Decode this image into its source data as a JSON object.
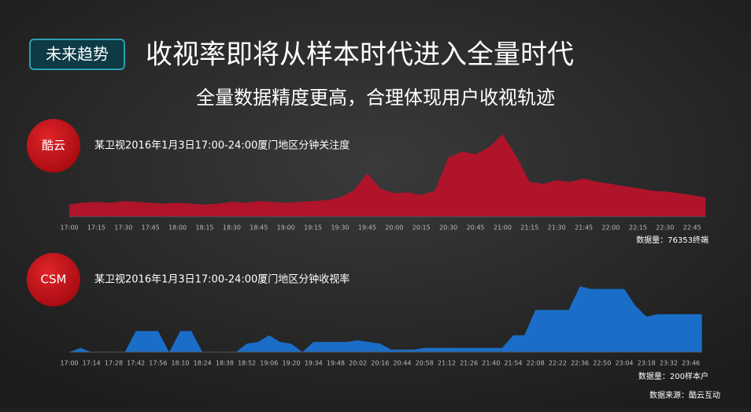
{
  "header": {
    "tag": "未来趋势",
    "title": "收视率即将从样本时代进入全量时代",
    "subtitle": "全量数据精度更高，合理体现用户收视轨迹"
  },
  "chart_data": [
    {
      "type": "area",
      "badge": "酷云",
      "title": "某卫视2016年1月3日17:00-24:00厦门地区分钟关注度",
      "note": "数据量：76353终端",
      "color": "#b0142a",
      "ylim": [
        0,
        100
      ],
      "categories": [
        "17:00",
        null,
        "17:15",
        null,
        "17:30",
        null,
        "17:45",
        null,
        "18:00",
        null,
        "18:15",
        null,
        "18:30",
        null,
        "18:45",
        null,
        "19:00",
        null,
        "19:15",
        null,
        "19:30",
        null,
        "19:45",
        null,
        "20:00",
        null,
        "20:15",
        null,
        "20:30",
        null,
        "20:45",
        null,
        "21:00",
        null,
        "21:15",
        null,
        "21:30",
        null,
        "21:45",
        null,
        "22:00",
        null,
        "22:15",
        null,
        "22:30",
        null,
        "22:45",
        null
      ],
      "values": [
        14,
        16,
        17,
        16,
        18,
        17,
        16,
        15,
        16,
        15,
        14,
        15,
        17,
        16,
        18,
        17,
        16,
        17,
        18,
        19,
        22,
        30,
        50,
        32,
        27,
        28,
        25,
        30,
        68,
        75,
        72,
        80,
        95,
        70,
        40,
        38,
        42,
        40,
        44,
        40,
        38,
        35,
        33,
        30,
        29,
        27,
        25,
        22
      ]
    },
    {
      "type": "area",
      "badge": "CSM",
      "title": "某卫视2016年1月3日17:00-24:00厦门地区分钟收视率",
      "note": "数据量：200样本户",
      "color": "#1a6ec8",
      "ylim": [
        0,
        100
      ],
      "categories": [
        "17:00",
        null,
        "17:14",
        null,
        "17:28",
        null,
        "17:42",
        null,
        "17:56",
        null,
        "18:10",
        null,
        "18:24",
        null,
        "18:38",
        null,
        "18:52",
        null,
        "19:06",
        null,
        "19:20",
        null,
        "19:34",
        null,
        "19:48",
        null,
        "20:02",
        null,
        "20:16",
        null,
        "20:44",
        null,
        "20:58",
        null,
        "21:12",
        null,
        "21:26",
        null,
        "21:40",
        null,
        "21:54",
        null,
        "22:08",
        null,
        "22:22",
        null,
        "22:36",
        null,
        "22:50",
        null,
        "23:04",
        null,
        "23:18",
        null,
        "23:32",
        null,
        "23:46",
        null
      ],
      "values": [
        0,
        5,
        0,
        0,
        0,
        0,
        25,
        25,
        25,
        0,
        25,
        25,
        0,
        0,
        0,
        0,
        10,
        12,
        20,
        12,
        10,
        0,
        12,
        12,
        12,
        12,
        14,
        12,
        10,
        3,
        3,
        3,
        5,
        5,
        5,
        5,
        5,
        5,
        5,
        5,
        20,
        20,
        50,
        50,
        50,
        50,
        78,
        75,
        75,
        75,
        75,
        55,
        42,
        45,
        45,
        45,
        45,
        45
      ]
    }
  ],
  "source": "数据来源：酷云互动"
}
